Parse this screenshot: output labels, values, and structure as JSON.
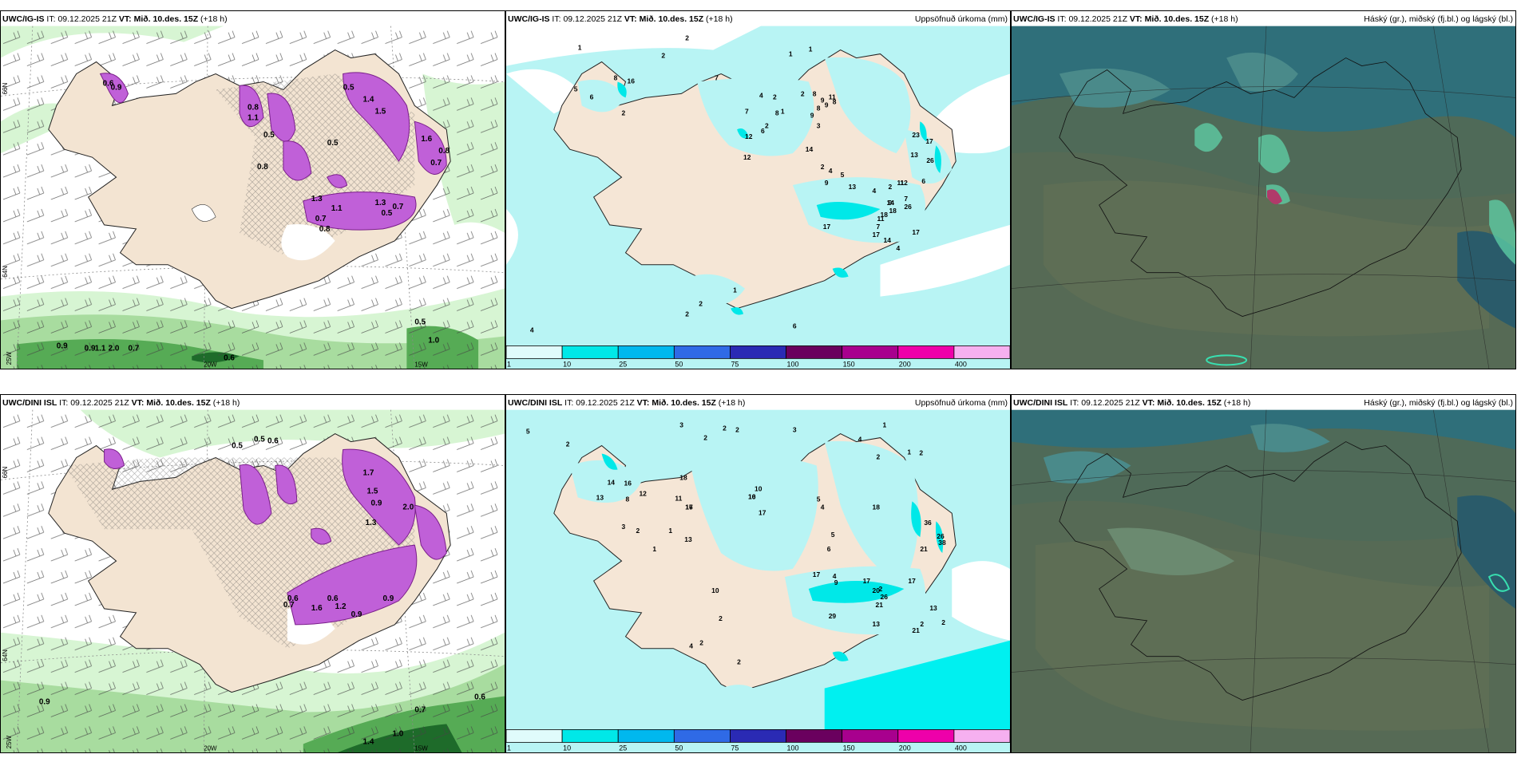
{
  "rows": [
    {
      "id": "igis",
      "panels": [
        {
          "model": "UWC/IG-IS",
          "it_label": "IT:",
          "it": "09.12.2025 21Z",
          "vt_label": "VT:",
          "vt": "Mið. 10.des. 15Z",
          "lead": "(+18 h)",
          "right": ""
        },
        {
          "model": "UWC/IG-IS",
          "it_label": "IT:",
          "it": "09.12.2025 21Z",
          "vt_label": "VT:",
          "vt": "Mið. 10.des. 15Z",
          "lead": "(+18 h)",
          "right": "Uppsöfnuð úrkoma (mm)"
        },
        {
          "model": "UWC/IG-IS",
          "it_label": "IT:",
          "it": "09.12.2025 21Z",
          "vt_label": "VT:",
          "vt": "Mið. 10.des. 15Z",
          "lead": "(+18 h)",
          "right": "Háský (gr.), miðský (fj.bl.) og lágský (bl.)"
        }
      ]
    },
    {
      "id": "dini",
      "panels": [
        {
          "model": "UWC/DINI ISL",
          "it_label": "IT:",
          "it": "09.12.2025 21Z",
          "vt_label": "VT:",
          "vt": "Mið. 10.des. 15Z",
          "lead": "(+18 h)",
          "right": ""
        },
        {
          "model": "UWC/DINI ISL",
          "it_label": "IT:",
          "it": "09.12.2025 21Z",
          "vt_label": "VT:",
          "vt": "Mið. 10.des. 15Z",
          "lead": "(+18 h)",
          "right": "Uppsöfnuð úrkoma (mm)"
        },
        {
          "model": "UWC/DINI ISL",
          "it_label": "IT:",
          "it": "09.12.2025 21Z",
          "vt_label": "VT:",
          "vt": "Mið. 10.des. 15Z",
          "lead": "(+18 h)",
          "right": "Háský (gr.), miðský (fj.bl.) og lágský (bl.)"
        }
      ]
    }
  ],
  "map_labels": {
    "lat_66": "66N",
    "lat_64": "64N",
    "lon_25": "25W",
    "lon_20": "20W",
    "lon_15": "15W"
  },
  "colorbar": {
    "ticks": [
      "1",
      "10",
      "25",
      "50",
      "75",
      "100",
      "150",
      "200",
      "400"
    ],
    "colors": [
      "#e0fbfb",
      "#00e8e8",
      "#00b8ee",
      "#2f6ae6",
      "#2a2ab4",
      "#6a005e",
      "#a8008e",
      "#ee00aa",
      "#f6b0f0"
    ]
  },
  "precip_top": {
    "values": [
      "1",
      "2",
      "2",
      "1",
      "1",
      "8",
      "16",
      "6",
      "5",
      "2",
      "7",
      "4",
      "2",
      "1",
      "2",
      "8",
      "9",
      "11",
      "8",
      "9",
      "3",
      "2",
      "8",
      "8",
      "9",
      "7",
      "14",
      "12",
      "6",
      "12",
      "2",
      "4",
      "9",
      "5",
      "23",
      "17",
      "13",
      "26",
      "11",
      "14",
      "7",
      "4",
      "13",
      "9",
      "2",
      "6",
      "7",
      "12",
      "11",
      "26",
      "18",
      "18",
      "17",
      "17",
      "14",
      "17",
      "4",
      "1",
      "2",
      "2",
      "6",
      "4"
    ]
  },
  "precip_bottom": {
    "values": [
      "5",
      "2",
      "3",
      "2",
      "2",
      "2",
      "3",
      "4",
      "2",
      "1",
      "1",
      "2",
      "14",
      "16",
      "13",
      "8",
      "3",
      "2",
      "1",
      "1",
      "12",
      "11",
      "13",
      "17",
      "16",
      "18",
      "10",
      "17",
      "16",
      "10",
      "5",
      "4",
      "36",
      "26",
      "38",
      "21",
      "18",
      "5",
      "6",
      "17",
      "4",
      "9",
      "17",
      "21",
      "2",
      "26",
      "17",
      "20",
      "21",
      "2",
      "2",
      "13",
      "10",
      "2",
      "2",
      "4",
      "29",
      "13",
      "2"
    ]
  },
  "wind_top": {
    "values": [
      "0.6",
      "0.5",
      "0.9",
      "0.8",
      "1.4",
      "1.1",
      "1.5",
      "0.5",
      "0.8",
      "0.5",
      "1.3",
      "1.1",
      "0.8",
      "0.7",
      "1.3",
      "0.5",
      "0.7",
      "1.6",
      "0.7",
      "0.8",
      "0.9",
      "0.9",
      "1.1",
      "2.0",
      "0.7",
      "0.6",
      "0.5",
      "1.0"
    ]
  },
  "wind_bottom": {
    "values": [
      "0.5",
      "0.5",
      "0.6",
      "0.9",
      "1.7",
      "1.5",
      "0.9",
      "2.0",
      "1.3",
      "0.6",
      "0.7",
      "1.2",
      "0.9",
      "1.6",
      "0.6",
      "0.9",
      "0.7",
      "1.0",
      "1.4",
      "0.6"
    ]
  }
}
